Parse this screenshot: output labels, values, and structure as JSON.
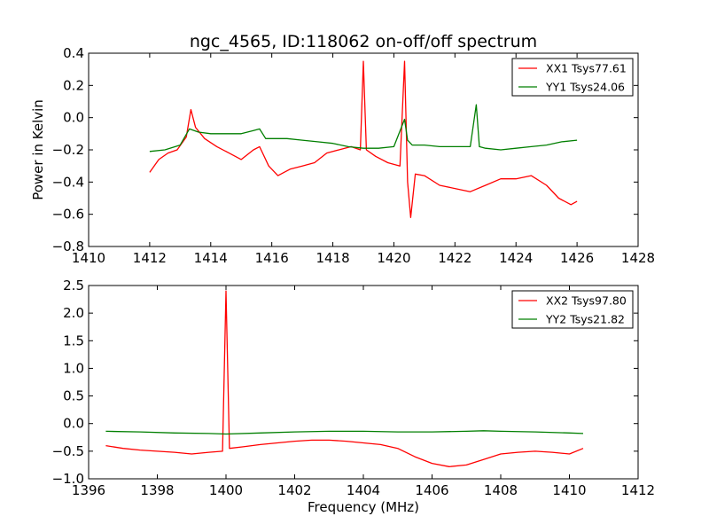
{
  "figure": {
    "title": "ngc_4565, ID:118062 on-off/off spectrum",
    "ylabel": "Power in Kelvin",
    "xlabel": "Frequency (MHz)"
  },
  "chart_data": [
    {
      "type": "line",
      "xlim": [
        1410,
        1428
      ],
      "ylim": [
        -0.8,
        0.4
      ],
      "xticks": [
        1410,
        1412,
        1414,
        1416,
        1418,
        1420,
        1422,
        1424,
        1426,
        1428
      ],
      "yticks": [
        -0.8,
        -0.6,
        -0.4,
        -0.2,
        0.0,
        0.2,
        0.4
      ],
      "xtick_labels": [
        "1410",
        "1412",
        "1414",
        "1416",
        "1418",
        "1420",
        "1422",
        "1424",
        "1426",
        "1428"
      ],
      "ytick_labels": [
        "−0.8",
        "−0.6",
        "−0.4",
        "−0.2",
        "0.0",
        "0.2",
        "0.4"
      ],
      "grid": false,
      "legend_position": "top-right",
      "series": [
        {
          "name": "XX1 Tsys77.61",
          "color": "#ff0000",
          "x": [
            1412.0,
            1412.3,
            1412.6,
            1412.9,
            1413.2,
            1413.35,
            1413.5,
            1413.8,
            1414.2,
            1414.6,
            1415.0,
            1415.4,
            1415.6,
            1415.9,
            1416.2,
            1416.6,
            1417.0,
            1417.4,
            1417.8,
            1418.2,
            1418.6,
            1418.9,
            1419.0,
            1419.1,
            1419.4,
            1419.8,
            1420.2,
            1420.35,
            1420.45,
            1420.55,
            1420.7,
            1421.0,
            1421.5,
            1422.0,
            1422.5,
            1423.0,
            1423.5,
            1424.0,
            1424.5,
            1425.0,
            1425.4,
            1425.8,
            1426.0
          ],
          "y": [
            -0.34,
            -0.26,
            -0.22,
            -0.2,
            -0.12,
            0.05,
            -0.06,
            -0.13,
            -0.18,
            -0.22,
            -0.26,
            -0.2,
            -0.18,
            -0.3,
            -0.36,
            -0.32,
            -0.3,
            -0.28,
            -0.22,
            -0.2,
            -0.18,
            -0.2,
            0.35,
            -0.2,
            -0.24,
            -0.28,
            -0.3,
            0.35,
            -0.4,
            -0.62,
            -0.35,
            -0.36,
            -0.42,
            -0.44,
            -0.46,
            -0.42,
            -0.38,
            -0.38,
            -0.36,
            -0.42,
            -0.5,
            -0.54,
            -0.52
          ]
        },
        {
          "name": "YY1 Tsys24.06",
          "color": "#007f00",
          "x": [
            1412.0,
            1412.5,
            1413.0,
            1413.3,
            1413.6,
            1414.0,
            1414.5,
            1415.0,
            1415.4,
            1415.6,
            1415.8,
            1416.5,
            1417.0,
            1417.5,
            1418.0,
            1418.5,
            1419.0,
            1419.5,
            1420.0,
            1420.35,
            1420.45,
            1420.6,
            1421.0,
            1421.5,
            1422.0,
            1422.5,
            1422.7,
            1422.8,
            1423.0,
            1423.5,
            1424.0,
            1424.5,
            1425.0,
            1425.5,
            1426.0
          ],
          "y": [
            -0.21,
            -0.2,
            -0.17,
            -0.07,
            -0.09,
            -0.1,
            -0.1,
            -0.1,
            -0.08,
            -0.07,
            -0.13,
            -0.13,
            -0.14,
            -0.15,
            -0.16,
            -0.18,
            -0.19,
            -0.19,
            -0.18,
            -0.01,
            -0.14,
            -0.17,
            -0.17,
            -0.18,
            -0.18,
            -0.18,
            0.08,
            -0.18,
            -0.19,
            -0.2,
            -0.19,
            -0.18,
            -0.17,
            -0.15,
            -0.14
          ]
        }
      ]
    },
    {
      "type": "line",
      "xlim": [
        1396,
        1412
      ],
      "ylim": [
        -1.0,
        2.5
      ],
      "xticks": [
        1396,
        1398,
        1400,
        1402,
        1404,
        1406,
        1408,
        1410,
        1412
      ],
      "yticks": [
        -1.0,
        -0.5,
        0.0,
        0.5,
        1.0,
        1.5,
        2.0,
        2.5
      ],
      "xtick_labels": [
        "1396",
        "1398",
        "1400",
        "1402",
        "1404",
        "1406",
        "1408",
        "1410",
        "1412"
      ],
      "ytick_labels": [
        "−1.0",
        "−0.5",
        "0.0",
        "0.5",
        "1.0",
        "1.5",
        "2.0",
        "2.5"
      ],
      "grid": false,
      "legend_position": "top-right",
      "series": [
        {
          "name": "XX2 Tsys97.80",
          "color": "#ff0000",
          "x": [
            1396.5,
            1397.0,
            1397.5,
            1398.0,
            1398.5,
            1399.0,
            1399.5,
            1399.9,
            1400.0,
            1400.1,
            1400.5,
            1401.0,
            1401.5,
            1402.0,
            1402.5,
            1403.0,
            1403.5,
            1404.0,
            1404.5,
            1405.0,
            1405.5,
            1406.0,
            1406.5,
            1407.0,
            1407.5,
            1408.0,
            1408.5,
            1409.0,
            1409.5,
            1410.0,
            1410.4
          ],
          "y": [
            -0.4,
            -0.45,
            -0.48,
            -0.5,
            -0.52,
            -0.55,
            -0.52,
            -0.5,
            2.4,
            -0.45,
            -0.42,
            -0.38,
            -0.35,
            -0.32,
            -0.3,
            -0.3,
            -0.32,
            -0.35,
            -0.38,
            -0.45,
            -0.6,
            -0.72,
            -0.78,
            -0.75,
            -0.65,
            -0.55,
            -0.52,
            -0.5,
            -0.52,
            -0.55,
            -0.45
          ]
        },
        {
          "name": "YY2 Tsys21.82",
          "color": "#007f00",
          "x": [
            1396.5,
            1397.5,
            1398.5,
            1399.5,
            1400.0,
            1401.0,
            1402.0,
            1403.0,
            1404.0,
            1405.0,
            1406.0,
            1407.0,
            1407.5,
            1408.0,
            1409.0,
            1410.0,
            1410.4
          ],
          "y": [
            -0.14,
            -0.15,
            -0.17,
            -0.18,
            -0.19,
            -0.17,
            -0.15,
            -0.14,
            -0.14,
            -0.15,
            -0.15,
            -0.14,
            -0.13,
            -0.14,
            -0.15,
            -0.17,
            -0.18
          ]
        }
      ]
    }
  ]
}
